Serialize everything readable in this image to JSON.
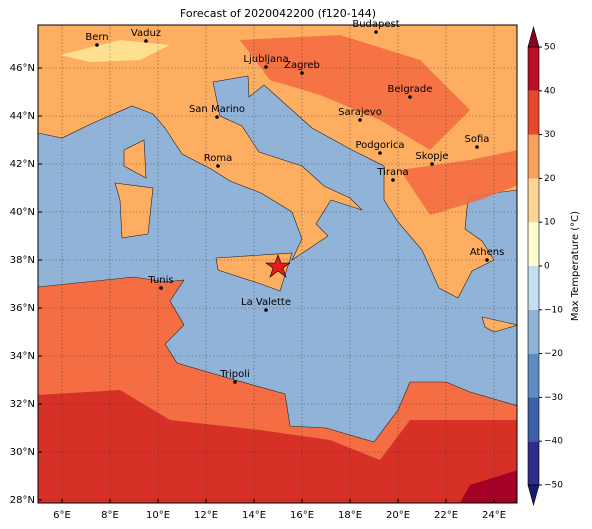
{
  "title": "Forecast of 2020042200 (f120-144)",
  "map": {
    "xticks": [
      {
        "value": 6,
        "label": "6°E"
      },
      {
        "value": 8,
        "label": "8°E"
      },
      {
        "value": 10,
        "label": "10°E"
      },
      {
        "value": 12,
        "label": "12°E"
      },
      {
        "value": 14,
        "label": "14°E"
      },
      {
        "value": 16,
        "label": "16°E"
      },
      {
        "value": 18,
        "label": "18°E"
      },
      {
        "value": 20,
        "label": "20°E"
      },
      {
        "value": 22,
        "label": "22°E"
      },
      {
        "value": 24,
        "label": "24°E"
      }
    ],
    "yticks": [
      {
        "value": 28,
        "label": "28°N"
      },
      {
        "value": 30,
        "label": "30°N"
      },
      {
        "value": 32,
        "label": "32°N"
      },
      {
        "value": 34,
        "label": "34°N"
      },
      {
        "value": 36,
        "label": "36°N"
      },
      {
        "value": 38,
        "label": "38°N"
      },
      {
        "value": 40,
        "label": "40°N"
      },
      {
        "value": 42,
        "label": "42°N"
      },
      {
        "value": 44,
        "label": "44°N"
      },
      {
        "value": 46,
        "label": "46°N"
      }
    ],
    "cities": [
      "Bern",
      "Vaduz",
      "Budapest",
      "Ljubljana",
      "Zagreb",
      "San Marino",
      "Sarajevo",
      "Belgrade",
      "Roma",
      "Podgorica",
      "Skopje",
      "Sofia",
      "Tirana",
      "Athens",
      "Tunis",
      "La Valette",
      "Tripoli"
    ]
  },
  "colorbar": {
    "label": "Max Temperature (°C)",
    "lim": [
      -50,
      50
    ],
    "ticks": [
      {
        "value": -50,
        "label": "−50"
      },
      {
        "value": -40,
        "label": "−40"
      },
      {
        "value": -30,
        "label": "−30"
      },
      {
        "value": -20,
        "label": "−20"
      },
      {
        "value": -10,
        "label": "−10"
      },
      0,
      10,
      20,
      30,
      40,
      50
    ],
    "colors": [
      "#2c2d8c",
      "#3f60a9",
      "#5f8cc2",
      "#91b3d7",
      "#c4e0ee",
      "#eef8f8",
      "#fffbd0",
      "#fdd595",
      "#f8a05c",
      "#e4492f",
      "#b80f26"
    ],
    "under_color": "#1a1a6e",
    "over_color": "#8c0020"
  }
}
